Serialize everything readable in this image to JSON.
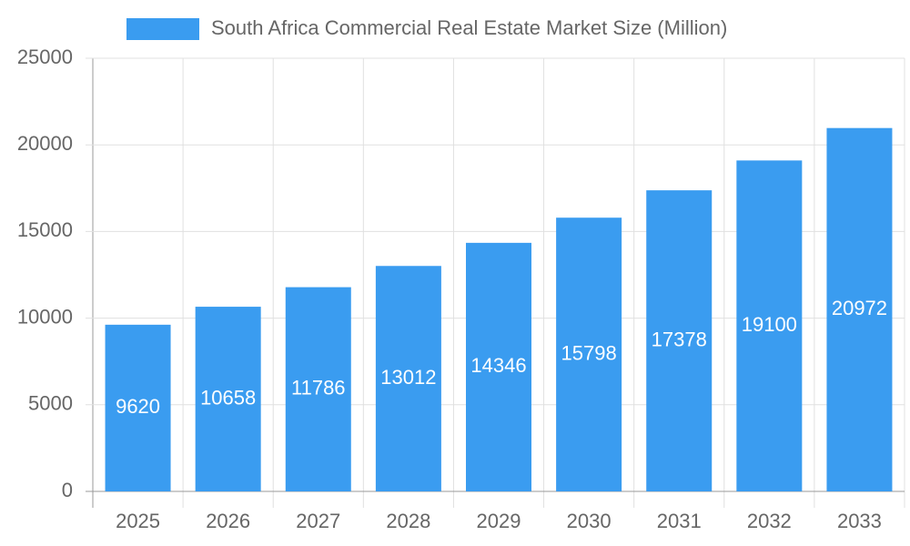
{
  "chart_data": {
    "type": "bar",
    "series": [
      {
        "name": "South Africa Commercial Real Estate Market Size (Million)",
        "color": "#3a9cf0",
        "values": [
          9620,
          10658,
          11786,
          13012,
          14346,
          15798,
          17378,
          19100,
          20972
        ]
      }
    ],
    "categories": [
      "2025",
      "2026",
      "2027",
      "2028",
      "2029",
      "2030",
      "2031",
      "2032",
      "2033"
    ],
    "ylim": [
      0,
      25000
    ],
    "yticks": [
      0,
      5000,
      10000,
      15000,
      20000,
      25000
    ],
    "grid": true,
    "legend": "top"
  }
}
